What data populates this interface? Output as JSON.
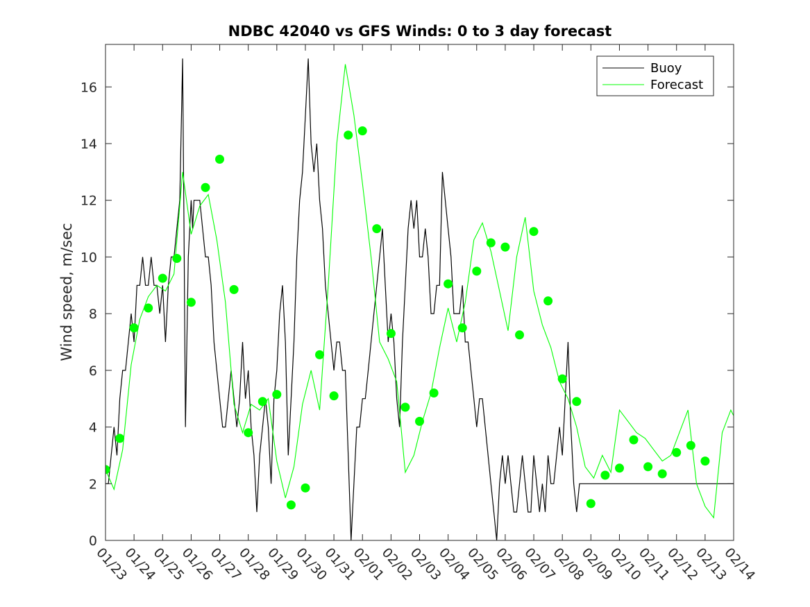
{
  "chart_data": {
    "type": "line",
    "title": "NDBC 42040 vs GFS Winds: 0 to 3 day forecast",
    "xlabel": "",
    "ylabel": "Wind speed, m/sec",
    "x_tick_labels": [
      "01/23",
      "01/24",
      "01/25",
      "01/26",
      "01/27",
      "01/28",
      "01/29",
      "01/30",
      "01/31",
      "02/01",
      "02/02",
      "02/03",
      "02/04",
      "02/05",
      "02/06",
      "02/07",
      "02/08",
      "02/09",
      "02/10",
      "02/11",
      "02/12",
      "02/13",
      "02/14"
    ],
    "xlim_days": [
      0,
      22
    ],
    "ylim": [
      0,
      17.5
    ],
    "y_ticks": [
      0,
      2,
      4,
      6,
      8,
      10,
      12,
      14,
      16
    ],
    "grid": false,
    "legend": {
      "placement": "top-right",
      "entries": [
        "Buoy",
        "Forecast"
      ]
    },
    "colors": {
      "buoy": "#000000",
      "forecast": "#00ff00",
      "axes": "#262626"
    },
    "series": [
      {
        "name": "Buoy",
        "x": [
          0,
          0.1,
          0.2,
          0.3,
          0.4,
          0.5,
          0.6,
          0.7,
          0.8,
          0.9,
          1,
          1.1,
          1.2,
          1.3,
          1.4,
          1.5,
          1.6,
          1.7,
          1.8,
          1.9,
          2,
          2.1,
          2.2,
          2.3,
          2.4,
          2.5,
          2.6,
          2.7,
          2.75,
          2.8,
          2.9,
          3,
          3.05,
          3.1,
          3.2,
          3.3,
          3.4,
          3.5,
          3.6,
          3.7,
          3.8,
          3.9,
          4,
          4.1,
          4.2,
          4.3,
          4.4,
          4.5,
          4.6,
          4.7,
          4.8,
          4.9,
          5,
          5.1,
          5.2,
          5.3,
          5.4,
          5.5,
          5.6,
          5.7,
          5.8,
          5.9,
          6,
          6.1,
          6.2,
          6.3,
          6.4,
          6.5,
          6.6,
          6.7,
          6.8,
          6.9,
          7,
          7.1,
          7.2,
          7.3,
          7.4,
          7.5,
          7.6,
          7.7,
          7.8,
          7.9,
          8,
          8.1,
          8.2,
          8.3,
          8.4,
          8.5,
          8.6,
          8.7,
          8.8,
          8.9,
          9,
          9.1,
          9.2,
          9.3,
          9.4,
          9.5,
          9.6,
          9.7,
          9.8,
          9.9,
          10,
          10.1,
          10.2,
          10.3,
          10.4,
          10.5,
          10.6,
          10.7,
          10.8,
          10.9,
          11,
          11.1,
          11.2,
          11.3,
          11.4,
          11.5,
          11.6,
          11.7,
          11.8,
          11.9,
          12,
          12.1,
          12.2,
          12.3,
          12.4,
          12.5,
          12.6,
          12.7,
          12.8,
          12.9,
          13,
          13.1,
          13.2,
          13.3,
          13.4,
          13.5,
          13.6,
          13.7,
          13.8,
          13.9,
          14,
          14.1,
          14.2,
          14.3,
          14.4,
          14.5,
          14.6,
          14.7,
          14.8,
          14.9,
          15,
          15.1,
          15.2,
          15.3,
          15.4,
          15.5,
          15.6,
          15.7,
          15.8,
          15.9,
          16,
          16.1,
          16.2,
          16.3,
          16.4,
          16.5,
          16.6,
          16.7,
          16.8,
          16.9,
          17,
          17.1,
          17.2,
          17.3,
          17.4,
          17.5,
          17.6,
          17.7,
          17.8,
          17.9,
          18,
          18.1,
          18.2,
          18.3,
          18.4,
          18.5,
          18.6,
          18.7,
          18.8,
          18.9,
          19,
          19.1,
          19.2,
          19.3,
          19.4,
          19.5,
          19.6,
          19.7,
          19.8,
          19.9,
          20,
          20.1,
          20.2,
          20.3,
          20.4,
          20.5,
          20.6,
          20.7,
          20.8,
          20.9,
          21,
          21.1,
          21.2,
          21.3,
          21.4,
          21.5,
          21.6,
          21.7,
          21.8,
          21.9,
          22
        ],
        "values": [
          2,
          2,
          3,
          4,
          3,
          5,
          6,
          6,
          7,
          8,
          7,
          9,
          9,
          10,
          9,
          9,
          10,
          9,
          9,
          8,
          9,
          7,
          9,
          10,
          10,
          11,
          12,
          17,
          11,
          4,
          10,
          12,
          11,
          12,
          12,
          12,
          11,
          10,
          10,
          9,
          7,
          6,
          5,
          4,
          4,
          5,
          6,
          5,
          4,
          5,
          7,
          5,
          6,
          4,
          3,
          1,
          3,
          4,
          5,
          4,
          2,
          5,
          6,
          8,
          9,
          7,
          3,
          5,
          7,
          10,
          12,
          13,
          15,
          17,
          14,
          13,
          14,
          12,
          11,
          9,
          8,
          7,
          6,
          7,
          7,
          6,
          6,
          3,
          0,
          2,
          4,
          4,
          5,
          5,
          6,
          7,
          8,
          9,
          10,
          11,
          9,
          7,
          8,
          7,
          5,
          4,
          7,
          9,
          11,
          12,
          11,
          12,
          10,
          10,
          11,
          10,
          8,
          8,
          9,
          9,
          13,
          12,
          11,
          10,
          8,
          8,
          8,
          9,
          7,
          7,
          6,
          5,
          4,
          5,
          5,
          4,
          3,
          2,
          1,
          0,
          2,
          3,
          2,
          3,
          2,
          1,
          1,
          2,
          3,
          2,
          1,
          1,
          3,
          2,
          1,
          2,
          1,
          3,
          2,
          2,
          3,
          4,
          3,
          5,
          7,
          4,
          2,
          1,
          2,
          2,
          2,
          2,
          2,
          2,
          2,
          2,
          2,
          2,
          2,
          2,
          2,
          2,
          2,
          2,
          2,
          2,
          2,
          2,
          2,
          2,
          2,
          2,
          2,
          2,
          2,
          2,
          2,
          2,
          2,
          2,
          2,
          2,
          2,
          2,
          2,
          2,
          2,
          2,
          2,
          2,
          2,
          2,
          2,
          2,
          2,
          2,
          2,
          2,
          2,
          2,
          2,
          2,
          2
        ]
      },
      {
        "name": "Forecast",
        "x": [
          0,
          0.3,
          0.6,
          0.9,
          1.2,
          1.5,
          1.8,
          2.1,
          2.4,
          2.7,
          3,
          3.3,
          3.6,
          3.9,
          4.2,
          4.5,
          4.8,
          5.1,
          5.4,
          5.7,
          6,
          6.3,
          6.6,
          6.9,
          7.2,
          7.5,
          7.8,
          8.1,
          8.4,
          8.7,
          9,
          9.3,
          9.6,
          9.9,
          10.2,
          10.5,
          10.8,
          11.1,
          11.4,
          11.7,
          12,
          12.3,
          12.6,
          12.9,
          13.2,
          13.5,
          13.8,
          14.1,
          14.4,
          14.7,
          15,
          15.3,
          15.6,
          15.9,
          16.2,
          16.5,
          16.8,
          17.1,
          17.4,
          17.7,
          18,
          18.3,
          18.6,
          18.9,
          19.2,
          19.5,
          19.8,
          20.1,
          20.4,
          20.7,
          21,
          21.3,
          21.6,
          21.9,
          22
        ],
        "values": [
          2.5,
          1.8,
          3.2,
          6.2,
          7.8,
          8.6,
          9.0,
          8.8,
          9.4,
          13.0,
          10.8,
          11.8,
          12.2,
          10.6,
          8.4,
          4.8,
          3.8,
          4.8,
          4.6,
          5.0,
          2.8,
          1.5,
          2.6,
          4.8,
          6.0,
          4.6,
          9.0,
          14.0,
          16.8,
          15.0,
          12.6,
          10.0,
          7.0,
          6.4,
          5.6,
          2.4,
          3.0,
          4.2,
          5.2,
          6.8,
          8.2,
          7.0,
          8.4,
          10.6,
          11.2,
          10.2,
          8.8,
          7.4,
          10.0,
          11.4,
          8.8,
          7.6,
          6.8,
          5.6,
          5.0,
          4.0,
          2.6,
          2.2,
          3.0,
          2.4,
          4.6,
          4.2,
          3.8,
          3.6,
          3.2,
          2.8,
          3.0,
          3.8,
          4.6,
          2.0,
          1.2,
          0.8,
          3.8,
          4.6,
          4.4
        ]
      }
    ],
    "markers": {
      "series": "Forecast",
      "x": [
        0,
        0.5,
        1,
        1.5,
        2,
        2.5,
        3,
        3.5,
        4,
        4.5,
        5,
        5.5,
        6,
        6.5,
        7,
        7.5,
        8,
        8.5,
        9,
        9.5,
        10,
        10.5,
        11,
        11.5,
        12,
        12.5,
        13,
        13.5,
        14,
        14.5,
        15,
        15.5,
        16,
        16.5,
        17,
        17.5,
        18,
        18.5,
        19,
        19.5,
        20,
        20.5,
        21
      ],
      "values": [
        2.5,
        3.6,
        7.5,
        8.2,
        9.25,
        9.95,
        8.4,
        12.45,
        13.45,
        8.85,
        3.8,
        4.9,
        5.15,
        1.25,
        1.85,
        6.55,
        5.1,
        14.3,
        14.45,
        11.0,
        7.3,
        4.7,
        4.2,
        5.2,
        9.05,
        7.5,
        9.5,
        10.5,
        10.35,
        7.25,
        10.9,
        8.45,
        5.7,
        4.9,
        1.3,
        2.3,
        2.55,
        3.55,
        2.6,
        2.35,
        3.1,
        3.35,
        2.8
      ]
    }
  }
}
